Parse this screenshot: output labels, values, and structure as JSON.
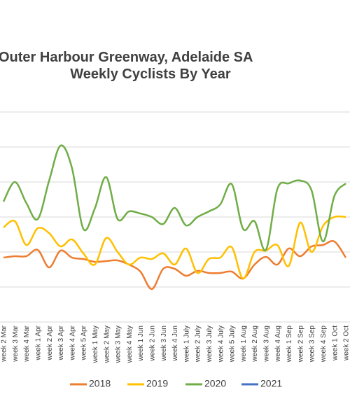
{
  "chart_data": {
    "type": "line",
    "title_lines": [
      "Outer Harbour Greenway, Adelaide SA",
      "Weekly Cyclists By Year"
    ],
    "categories": [
      "week 2 Mar",
      "week 3 Mar",
      "week 4 Mar",
      "week 1 Apr",
      "week 2 Apr",
      "week 3 Apr",
      "week 4 Apr",
      "week 5 Apr",
      "week 1 May",
      "week 2 May",
      "week 3 May",
      "week 4 May",
      "week 1 Jun",
      "week 2 Jun",
      "week 3 Jun",
      "week 4 Jun",
      "week 1 July",
      "week 2 July",
      "week 3 July",
      "week 4 July",
      "week 5 July",
      "week 1 Aug",
      "week 2 Aug",
      "week 3 Aug",
      "week 4 Aug",
      "week 1 Sep",
      "week 2 Sep",
      "week 3 Sep",
      "week 4 Sep",
      "week 1 Oct",
      "week 2 Oct"
    ],
    "series": [
      {
        "name": "2018",
        "color": "#ed7d31",
        "values": [
          184,
          188,
          188,
          206,
          156,
          204,
          184,
          180,
          172,
          174,
          176,
          164,
          144,
          94,
          152,
          152,
          132,
          146,
          140,
          140,
          144,
          124,
          164,
          186,
          164,
          210,
          188,
          216,
          220,
          230,
          184
        ]
      },
      {
        "name": "2019",
        "color": "#ffc000",
        "values": [
          270,
          288,
          220,
          268,
          254,
          216,
          236,
          196,
          164,
          240,
          200,
          164,
          184,
          180,
          196,
          164,
          210,
          140,
          180,
          184,
          214,
          124,
          200,
          204,
          220,
          160,
          284,
          200,
          274,
          300,
          300
        ]
      },
      {
        "name": "2020",
        "color": "#70ad47",
        "values": [
          344,
          400,
          340,
          294,
          404,
          504,
          440,
          266,
          324,
          414,
          294,
          316,
          310,
          300,
          280,
          326,
          276,
          300,
          316,
          336,
          394,
          266,
          288,
          206,
          380,
          396,
          404,
          376,
          230,
          360,
          396
        ]
      },
      {
        "name": "2021",
        "color": "#4472c4",
        "values": [
          null,
          null,
          null,
          null,
          null,
          null,
          null,
          null,
          null,
          null,
          null,
          null,
          null,
          null,
          null,
          null,
          null,
          null,
          null,
          null,
          null,
          null,
          null,
          null,
          null,
          null,
          null,
          null,
          null,
          null,
          null
        ]
      }
    ],
    "ylim": [
      0,
      600
    ],
    "gridlines": [
      0,
      100,
      200,
      300,
      400,
      500,
      600
    ],
    "legend": "bottom"
  }
}
